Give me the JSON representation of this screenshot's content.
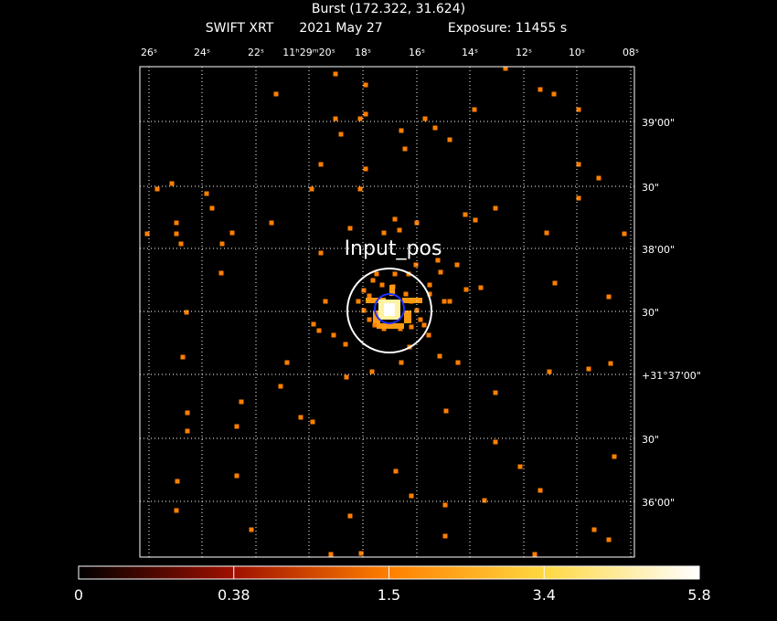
{
  "title": "Burst (172.322, 31.624)",
  "subtitle": {
    "instrument": "SWIFT XRT",
    "date": "2021 May 27",
    "exposure": "Exposure: 11455 s"
  },
  "ra_labels": [
    "26ˢ",
    "24ˢ",
    "22ˢ",
    "11ʰ29ᵐ20ˢ",
    "18ˢ",
    "16ˢ",
    "14ˢ",
    "12ˢ",
    "10ˢ",
    "08ˢ"
  ],
  "dec_labels": [
    "39'00\"",
    "30\"",
    "38'00\"",
    "30\"",
    "+31°37'00\"",
    "30\"",
    "36'00\""
  ],
  "region_label": "Input_pos",
  "colorbar": {
    "ticks": [
      "0",
      "0.38",
      "1.5",
      "3.4",
      "5.8"
    ]
  }
}
